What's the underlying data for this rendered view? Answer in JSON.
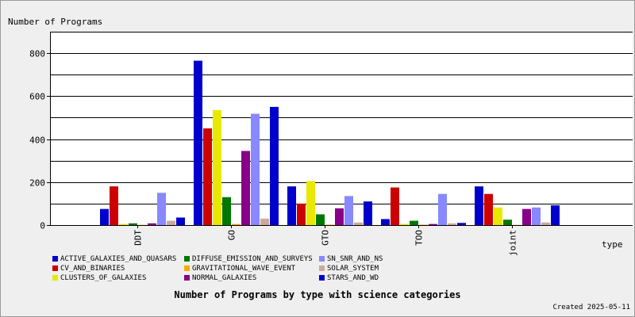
{
  "chart_data": {
    "type": "bar",
    "title": "Number of Programs by type with science categories",
    "ylabel": "Number of Programs",
    "xlabel": "type",
    "categories": [
      "DDT",
      "GO",
      "GTO",
      "TOO",
      "joint"
    ],
    "ylim": [
      0,
      900
    ],
    "yticks": [
      0,
      200,
      400,
      600,
      800
    ],
    "grid": true,
    "legend_position": "bottom",
    "series": [
      {
        "name": "ACTIVE_GALAXIES_AND_QUASARS",
        "color": "#0000cc",
        "values": [
          75,
          765,
          180,
          28,
          180
        ]
      },
      {
        "name": "CV_AND_BINARIES",
        "color": "#cc0000",
        "values": [
          180,
          450,
          100,
          175,
          145
        ]
      },
      {
        "name": "CLUSTERS_OF_GALAXIES",
        "color": "#e8e800",
        "values": [
          5,
          535,
          205,
          5,
          82
        ]
      },
      {
        "name": "DIFFUSE_EMISSION_AND_SURVEYS",
        "color": "#007700",
        "values": [
          8,
          130,
          50,
          20,
          25
        ]
      },
      {
        "name": "GRAVITATIONAL_WAVE_EVENT",
        "color": "#ffaa00",
        "values": [
          1,
          5,
          2,
          2,
          1
        ]
      },
      {
        "name": "NORMAL_GALAXIES",
        "color": "#880088",
        "values": [
          8,
          345,
          78,
          5,
          75
        ]
      },
      {
        "name": "SN_SNR_AND_NS",
        "color": "#8888ff",
        "values": [
          150,
          518,
          135,
          145,
          82
        ]
      },
      {
        "name": "SOLAR_SYSTEM",
        "color": "#ccaa99",
        "values": [
          20,
          30,
          12,
          8,
          12
        ]
      },
      {
        "name": "STARS_AND_WD",
        "color": "#0000cc",
        "values": [
          35,
          550,
          110,
          10,
          92
        ]
      }
    ]
  },
  "footer": {
    "created": "Created 2025-05-11"
  }
}
